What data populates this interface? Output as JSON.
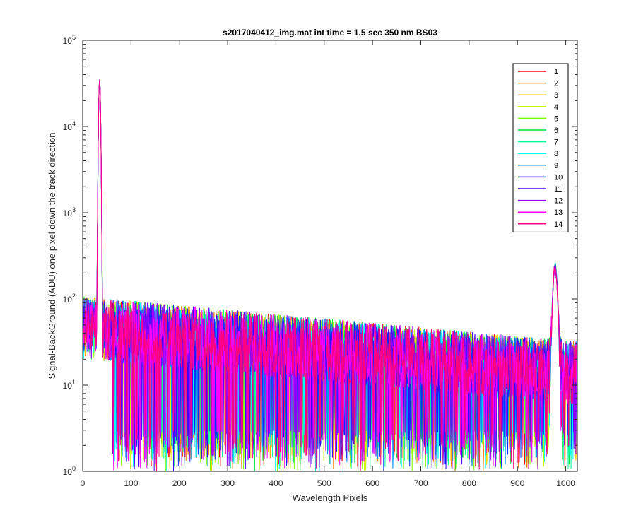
{
  "chart_data": {
    "type": "line",
    "title": "s2017040412_img.mat int time = 1.5 sec  350 nm BS03",
    "xlabel": "Wavelength Pixels",
    "ylabel": "Signal-BackGround (ADU) one pixel down the track direction",
    "xlim": [
      0,
      1024
    ],
    "ylim": [
      1,
      100000
    ],
    "yscale": "log",
    "grid": false,
    "legend_position": "top-right",
    "x_ticks": [
      0,
      100,
      200,
      300,
      400,
      500,
      600,
      700,
      800,
      900,
      1000
    ],
    "y_tick_exponents": [
      0,
      1,
      2,
      3,
      4,
      5
    ],
    "y_tick_base": "10",
    "features": {
      "primary_peak": {
        "x": 35,
        "y": 35000
      },
      "secondary_peak": {
        "x": 978,
        "y": 230
      },
      "baseline_start": 50,
      "baseline_end": 15
    },
    "series": [
      {
        "name": "1",
        "color": "#ff0000"
      },
      {
        "name": "2",
        "color": "#ff7f00"
      },
      {
        "name": "3",
        "color": "#ffd000"
      },
      {
        "name": "4",
        "color": "#c8ff00"
      },
      {
        "name": "5",
        "color": "#7fff00"
      },
      {
        "name": "6",
        "color": "#00e63c"
      },
      {
        "name": "7",
        "color": "#00ff9a"
      },
      {
        "name": "8",
        "color": "#00ffff"
      },
      {
        "name": "9",
        "color": "#0090ff"
      },
      {
        "name": "10",
        "color": "#0030ff"
      },
      {
        "name": "11",
        "color": "#4000ff"
      },
      {
        "name": "12",
        "color": "#9a00ff"
      },
      {
        "name": "13",
        "color": "#ff00ff"
      },
      {
        "name": "14",
        "color": "#ff0080"
      }
    ]
  }
}
